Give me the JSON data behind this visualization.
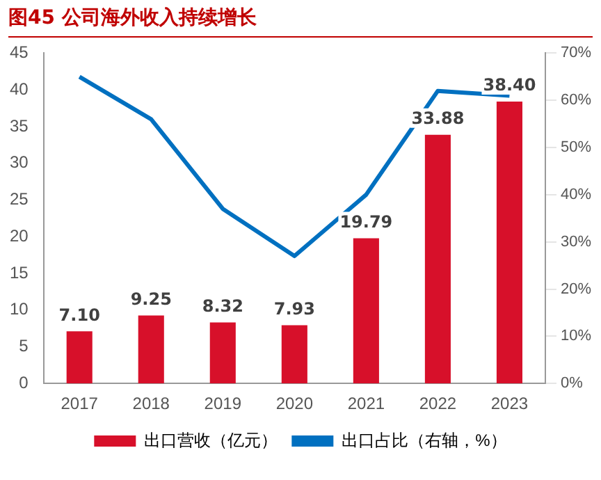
{
  "chart_data": {
    "type": "bar",
    "title": "图45 公司海外收入持续增长",
    "categories": [
      "2017",
      "2018",
      "2019",
      "2020",
      "2021",
      "2022",
      "2023"
    ],
    "series": [
      {
        "name": "出口营收（亿元）",
        "color": "#d7102a",
        "values": [
          7.1,
          9.25,
          8.32,
          7.93,
          19.79,
          33.88,
          38.4
        ],
        "value_labels": [
          "7.10",
          "9.25",
          "8.32",
          "7.93",
          "19.79",
          "33.88",
          "38.40"
        ]
      },
      {
        "name": "出口占比（右轴，%）",
        "type": "line",
        "axis": "y2",
        "color": "#0070c0",
        "values": [
          65,
          56,
          37,
          27,
          40,
          62,
          61
        ]
      }
    ],
    "ylim": [
      0,
      45
    ],
    "yticks": [
      0,
      5,
      10,
      15,
      20,
      25,
      30,
      35,
      40,
      45
    ],
    "y2lim": [
      0,
      70
    ],
    "y2ticks": [
      {
        "value": 0,
        "label": "0%"
      },
      {
        "value": 10,
        "label": "10%"
      },
      {
        "value": 20,
        "label": "20%"
      },
      {
        "value": 30,
        "label": "30%"
      },
      {
        "value": 40,
        "label": "40%"
      },
      {
        "value": 50,
        "label": "50%"
      },
      {
        "value": 60,
        "label": "60%"
      },
      {
        "value": 70,
        "label": "70%"
      }
    ],
    "grid": false,
    "legend": "bottom",
    "marker": "none"
  }
}
